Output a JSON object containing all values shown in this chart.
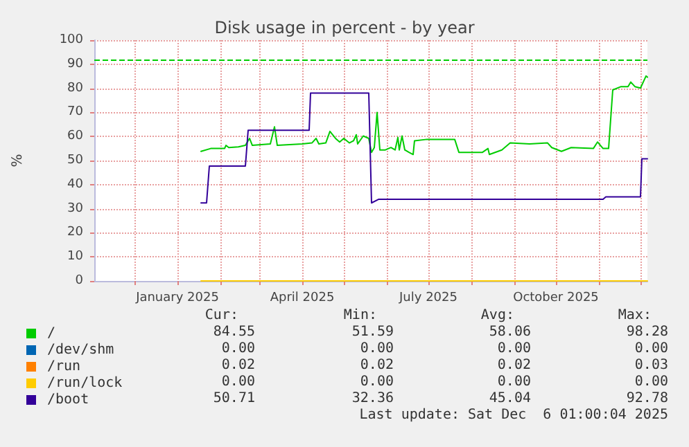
{
  "chart_data": {
    "type": "line",
    "title": "Disk usage in percent - by year",
    "ylabel": "%",
    "xlim": [
      "2024-11-02",
      "2025-12-06"
    ],
    "xticks": [
      {
        "value": "2024-12-01",
        "label": null
      },
      {
        "value": "2025-01-01",
        "label": "January 2025"
      },
      {
        "value": "2025-02-01",
        "label": null
      },
      {
        "value": "2025-03-01",
        "label": null
      },
      {
        "value": "2025-04-01",
        "label": "April 2025"
      },
      {
        "value": "2025-05-01",
        "label": null
      },
      {
        "value": "2025-06-01",
        "label": null
      },
      {
        "value": "2025-07-01",
        "label": "July 2025"
      },
      {
        "value": "2025-08-01",
        "label": null
      },
      {
        "value": "2025-09-01",
        "label": null
      },
      {
        "value": "2025-10-01",
        "label": "October 2025"
      },
      {
        "value": "2025-11-01",
        "label": null
      },
      {
        "value": "2025-12-01",
        "label": null
      }
    ],
    "ylim": [
      0,
      100
    ],
    "yticks": [
      0,
      10,
      20,
      30,
      40,
      50,
      60,
      70,
      80,
      90,
      100
    ],
    "grid": true,
    "legend": "bottom left",
    "marker": "none",
    "line_style": "solid",
    "series": [
      {
        "name": "/",
        "color": "#00cc00",
        "x": [
          "2025-01-18",
          "2025-01-25",
          "2025-02-04",
          "2025-02-05",
          "2025-02-07",
          "2025-02-14",
          "2025-02-19",
          "2025-02-22",
          "2025-02-24",
          "2025-03-09",
          "2025-03-12",
          "2025-03-14",
          "2025-04-01",
          "2025-04-08",
          "2025-04-11",
          "2025-04-13",
          "2025-04-18",
          "2025-04-21",
          "2025-04-25",
          "2025-04-28",
          "2025-05-01",
          "2025-05-05",
          "2025-05-08",
          "2025-05-10",
          "2025-05-11",
          "2025-05-15",
          "2025-05-19",
          "2025-05-21",
          "2025-05-23",
          "2025-05-25",
          "2025-05-27",
          "2025-05-31",
          "2025-06-04",
          "2025-06-07",
          "2025-06-09",
          "2025-06-10",
          "2025-06-12",
          "2025-06-14",
          "2025-06-17",
          "2025-06-20",
          "2025-06-21",
          "2025-06-30",
          "2025-07-20",
          "2025-07-23",
          "2025-08-09",
          "2025-08-13",
          "2025-08-14",
          "2025-08-23",
          "2025-08-29",
          "2025-09-12",
          "2025-09-25",
          "2025-09-28",
          "2025-10-05",
          "2025-10-12",
          "2025-10-28",
          "2025-10-31",
          "2025-11-04",
          "2025-11-08",
          "2025-11-11",
          "2025-11-17",
          "2025-11-22",
          "2025-11-24",
          "2025-11-27",
          "2025-12-01",
          "2025-12-05",
          "2025-12-06"
        ],
        "values": [
          53.8,
          55.0,
          55.0,
          56.3,
          55.4,
          55.7,
          56.3,
          59.2,
          56.3,
          56.9,
          64.0,
          56.3,
          56.9,
          57.3,
          59.2,
          56.9,
          57.3,
          62.1,
          59.2,
          57.7,
          59.2,
          57.3,
          58.2,
          60.7,
          56.9,
          60.2,
          59.2,
          53.4,
          55.4,
          70,
          54.4,
          54.4,
          55.4,
          54.4,
          59.6,
          54.4,
          60.2,
          54.4,
          53.4,
          52.5,
          58.2,
          58.8,
          58.8,
          53.4,
          53.4,
          55.0,
          52.5,
          54.4,
          57.3,
          56.9,
          57.3,
          55.4,
          53.8,
          55.4,
          55.0,
          57.7,
          55.0,
          55.0,
          79.3,
          80.7,
          80.7,
          82.6,
          80.7,
          80.1,
          85.1,
          84.6
        ]
      },
      {
        "name": "/dev/shm",
        "color": "#0066b3"
      },
      {
        "name": "/run",
        "color": "#ff8000"
      },
      {
        "name": "/run/lock",
        "color": "#ffcc00",
        "x": [
          "2025-01-18",
          "2025-12-06"
        ],
        "values": [
          0,
          0
        ]
      },
      {
        "name": "/boot",
        "color": "#330099",
        "x": [
          "2025-01-18",
          "2025-01-22",
          "2025-01-24",
          "2025-02-19",
          "2025-02-21",
          "2025-04-06",
          "2025-04-07",
          "2025-05-19",
          "2025-05-21",
          "2025-05-26",
          "2025-11-04",
          "2025-11-06",
          "2025-12-01",
          "2025-12-02",
          "2025-12-06"
        ],
        "values": [
          32.4,
          32.4,
          47.7,
          47.7,
          62.6,
          62.6,
          78.0,
          78.0,
          32.4,
          33.9,
          33.9,
          34.9,
          34.9,
          50.7,
          50.7
        ]
      }
    ],
    "ref_lines": [
      {
        "axis": "y",
        "value": 92,
        "label": null,
        "color": "#00cc00",
        "line_style": "dashed"
      }
    ],
    "annotations": [
      "Cur:",
      "Min:",
      "Avg:",
      "Max:",
      "84.55",
      "51.59",
      "58.06",
      "98.28",
      "0.00",
      "0.00",
      "0.00",
      "0.00",
      "0.02",
      "0.02",
      "0.02",
      "0.03",
      "0.00",
      "0.00",
      "0.00",
      "0.00",
      "50.71",
      "32.36",
      "45.04",
      "92.78",
      "Last update: Sat Dec  6 01:00:04 2025"
    ]
  }
}
